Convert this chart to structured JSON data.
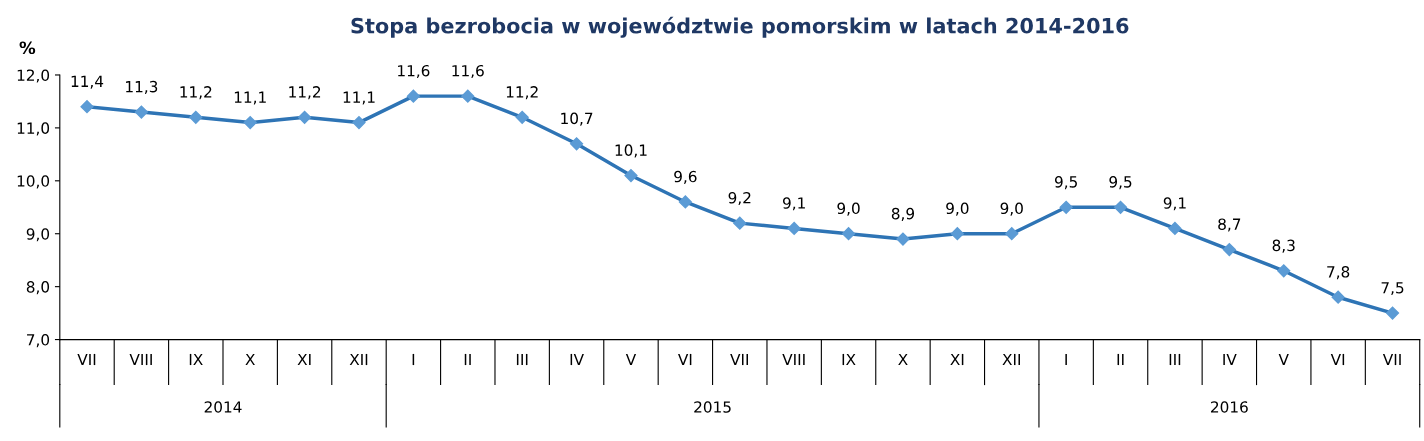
{
  "chart_data": {
    "type": "line",
    "title": "Stopa bezrobocia w województwie pomorskim w latach 2014-2016",
    "ylabel": "%",
    "categories": [
      "VII",
      "VIII",
      "IX",
      "X",
      "XI",
      "XII",
      "I",
      "II",
      "III",
      "IV",
      "V",
      "VI",
      "VII",
      "VIII",
      "IX",
      "X",
      "XI",
      "XII",
      "I",
      "II",
      "III",
      "IV",
      "V",
      "VI",
      "VII"
    ],
    "series": [
      {
        "color": "#2e74b5",
        "values": [
          11.4,
          11.3,
          11.2,
          11.1,
          11.2,
          11.1,
          11.6,
          11.6,
          11.2,
          10.7,
          10.1,
          9.6,
          9.2,
          9.1,
          9.0,
          8.9,
          9.0,
          9.0,
          9.5,
          9.5,
          9.1,
          8.7,
          8.3,
          7.8,
          7.5
        ],
        "value_labels": [
          "11,4",
          "11,3",
          "11,2",
          "11,1",
          "11,2",
          "11,1",
          "11,6",
          "11,6",
          "11,2",
          "10,7",
          "10,1",
          "9,6",
          "9,2",
          "9,1",
          "9,0",
          "8,9",
          "9,0",
          "9,0",
          "9,5",
          "9,5",
          "9,1",
          "8,7",
          "8,3",
          "7,8",
          "7,5"
        ]
      }
    ],
    "ylim": [
      7,
      12
    ],
    "yticks": [
      {
        "value": 7,
        "label": "7,0"
      },
      {
        "value": 8,
        "label": "8,0"
      },
      {
        "value": 9,
        "label": "9,0"
      },
      {
        "value": 10,
        "label": "10,0"
      },
      {
        "value": 11,
        "label": "11,0"
      },
      {
        "value": 12,
        "label": "12,0"
      }
    ],
    "annotations": [
      "2014",
      "2015",
      "2016"
    ],
    "marker": "diamond",
    "line_style": "solid",
    "grid": false,
    "legend": false
  }
}
